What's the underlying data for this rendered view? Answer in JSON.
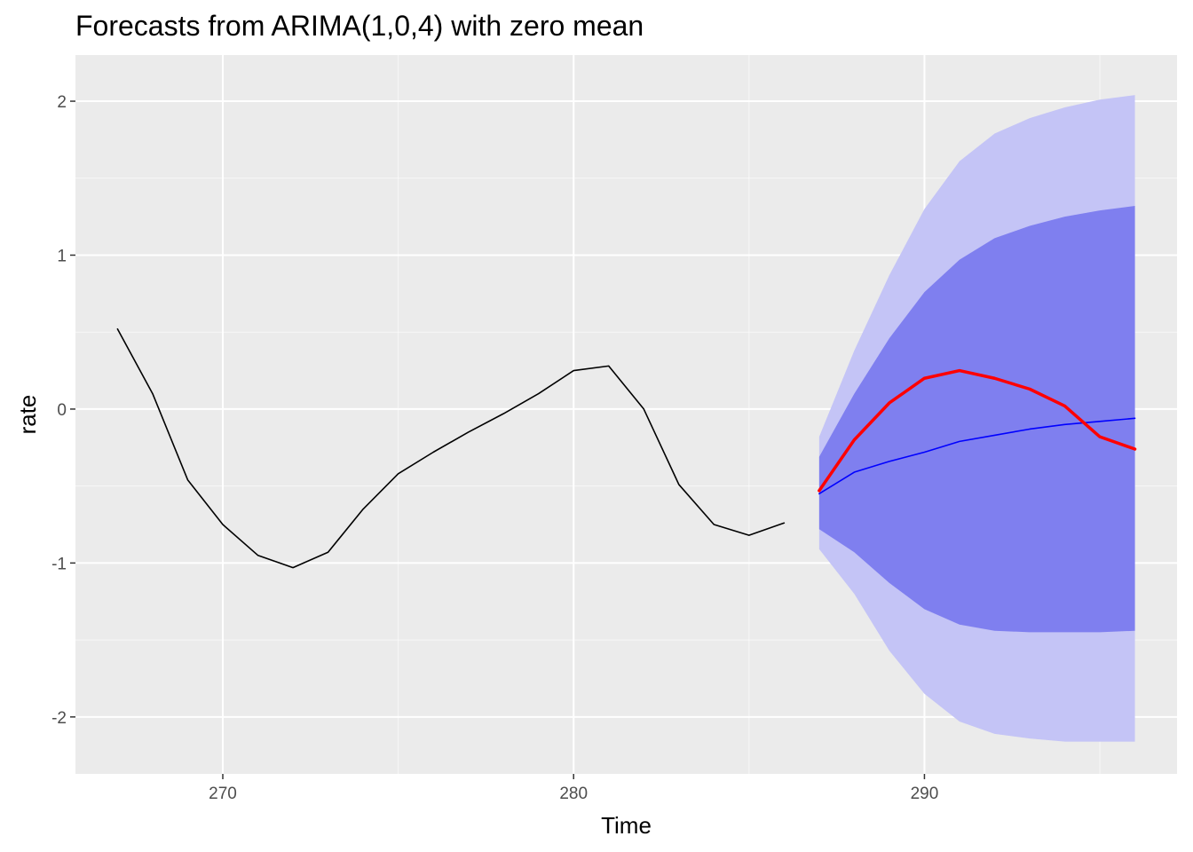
{
  "chart_data": {
    "type": "line",
    "title": "Forecasts from ARIMA(1,0,4) with zero mean",
    "xlabel": "Time",
    "ylabel": "rate",
    "xlim": [
      265.8,
      297.2
    ],
    "ylim": [
      -2.37,
      2.3
    ],
    "x_ticks": [
      270,
      280,
      290
    ],
    "x_tick_labels": [
      "270",
      "280",
      "290"
    ],
    "x_minor_ticks": [
      275,
      285,
      295
    ],
    "y_ticks": [
      -2,
      -1,
      0,
      1,
      2
    ],
    "y_tick_labels": [
      "-2",
      "-1",
      "0",
      "1",
      "2"
    ],
    "y_minor_ticks": [
      -1.5,
      -0.5,
      0.5,
      1.5
    ],
    "grid": true,
    "legend": "none",
    "colors": {
      "panel_background": "#EBEBEB",
      "grid_major": "#FFFFFF",
      "observed": "#000000",
      "forecast_mean": "#0000FF",
      "comparison": "#FF0000",
      "band_80": "#7F7FEF",
      "band_95": "#C4C4F6"
    },
    "series": [
      {
        "role": "observed",
        "x": [
          267,
          268,
          269,
          270,
          271,
          272,
          273,
          274,
          275,
          276,
          277,
          278,
          279,
          280,
          281,
          282,
          283,
          284,
          285,
          286
        ],
        "values": [
          0.52,
          0.1,
          -0.46,
          -0.75,
          -0.95,
          -1.03,
          -0.93,
          -0.65,
          -0.42,
          -0.28,
          -0.15,
          -0.03,
          0.1,
          0.25,
          0.28,
          0.0,
          -0.49,
          -0.75,
          -0.82,
          -0.74
        ]
      },
      {
        "role": "forecast_mean",
        "x": [
          287,
          288,
          289,
          290,
          291,
          292,
          293,
          294,
          295,
          296
        ],
        "values": [
          -0.55,
          -0.41,
          -0.34,
          -0.28,
          -0.21,
          -0.17,
          -0.13,
          -0.1,
          -0.08,
          -0.06
        ]
      },
      {
        "role": "comparison",
        "x": [
          287,
          288,
          289,
          290,
          291,
          292,
          293,
          294,
          295,
          296
        ],
        "values": [
          -0.53,
          -0.2,
          0.04,
          0.2,
          0.25,
          0.2,
          0.13,
          0.02,
          -0.18,
          -0.26
        ]
      }
    ],
    "bands": [
      {
        "role": "band_95",
        "x": [
          287,
          288,
          289,
          290,
          291,
          292,
          293,
          294,
          295,
          296
        ],
        "lower": [
          -0.91,
          -1.2,
          -1.57,
          -1.85,
          -2.03,
          -2.11,
          -2.14,
          -2.16,
          -2.16,
          -2.16
        ],
        "upper": [
          -0.18,
          0.38,
          0.87,
          1.3,
          1.61,
          1.79,
          1.89,
          1.96,
          2.01,
          2.04
        ]
      },
      {
        "role": "band_80",
        "x": [
          287,
          288,
          289,
          290,
          291,
          292,
          293,
          294,
          295,
          296
        ],
        "lower": [
          -0.78,
          -0.93,
          -1.13,
          -1.3,
          -1.4,
          -1.44,
          -1.45,
          -1.45,
          -1.45,
          -1.44
        ],
        "upper": [
          -0.31,
          0.1,
          0.46,
          0.76,
          0.97,
          1.11,
          1.19,
          1.25,
          1.29,
          1.32
        ]
      }
    ]
  }
}
